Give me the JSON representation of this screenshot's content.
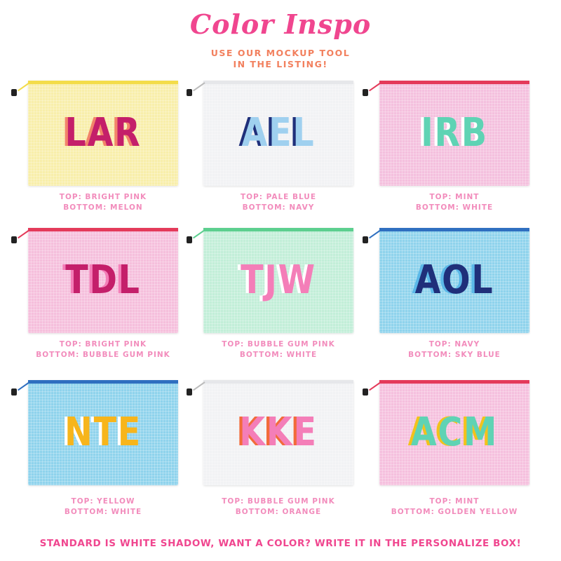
{
  "header": {
    "title": "Color Inspo",
    "subtitle_line1": "USE OUR MOCKUP TOOL",
    "subtitle_line2": "IN THE LISTING!"
  },
  "pouches": [
    {
      "monogram": "LAR",
      "top": "TOP: BRIGHT PINK",
      "bottom": "BOTTOM: MELON",
      "bg": "#f8eeaa",
      "zip": "#f3dc4a",
      "top_color": "#c41f6a",
      "bottom_color": "#f2846a"
    },
    {
      "monogram": "AEL",
      "top": "TOP: PALE BLUE",
      "bottom": "BOTTOM: NAVY",
      "bg": "#f1f2f4",
      "zip": "#e6e7ea",
      "top_color": "#9fd0ef",
      "bottom_color": "#1f2f7a"
    },
    {
      "monogram": "IRB",
      "top": "TOP: MINT",
      "bottom": "BOTTOM: WHITE",
      "bg": "#f4c0de",
      "zip": "#e43a5a",
      "top_color": "#5fd3b4",
      "bottom_color": "#ffffff"
    },
    {
      "monogram": "TDL",
      "top": "TOP: BRIGHT PINK",
      "bottom": "BOTTOM: BUBBLE GUM PINK",
      "bg": "#f5bfdc",
      "zip": "#e43a5a",
      "top_color": "#c41f6a",
      "bottom_color": "#f47eb8"
    },
    {
      "monogram": "TJW",
      "top": "TOP: BUBBLE GUM PINK",
      "bottom": "BOTTOM: WHITE",
      "bg": "#c2eed8",
      "zip": "#5ccf8f",
      "top_color": "#f47eb8",
      "bottom_color": "#ffffff"
    },
    {
      "monogram": "AOL",
      "top": "TOP: NAVY",
      "bottom": "BOTTOM: SKY BLUE",
      "bg": "#8fd3ec",
      "zip": "#2f6fc0",
      "top_color": "#1f2f7a",
      "bottom_color": "#5bb8e8"
    },
    {
      "monogram": "NTE",
      "top": "TOP: YELLOW",
      "bottom": "BOTTOM: WHITE",
      "bg": "#8fd3ec",
      "zip": "#2f6fc0",
      "top_color": "#f7b51b",
      "bottom_color": "#ffffff"
    },
    {
      "monogram": "KKE",
      "top": "TOP: BUBBLE GUM PINK",
      "bottom": "BOTTOM: ORANGE",
      "bg": "#f1f2f4",
      "zip": "#e6e7ea",
      "top_color": "#f47eb8",
      "bottom_color": "#f26b3a"
    },
    {
      "monogram": "ACM",
      "top": "TOP: MINT",
      "bottom": "BOTTOM: GOLDEN YELLOW",
      "bg": "#f5c0de",
      "zip": "#e43a5a",
      "top_color": "#5fd3b4",
      "bottom_color": "#f2c21b"
    }
  ],
  "footer": "STANDARD IS WHITE SHADOW, WANT A COLOR? WRITE IT IN THE PERSONALIZE BOX!"
}
